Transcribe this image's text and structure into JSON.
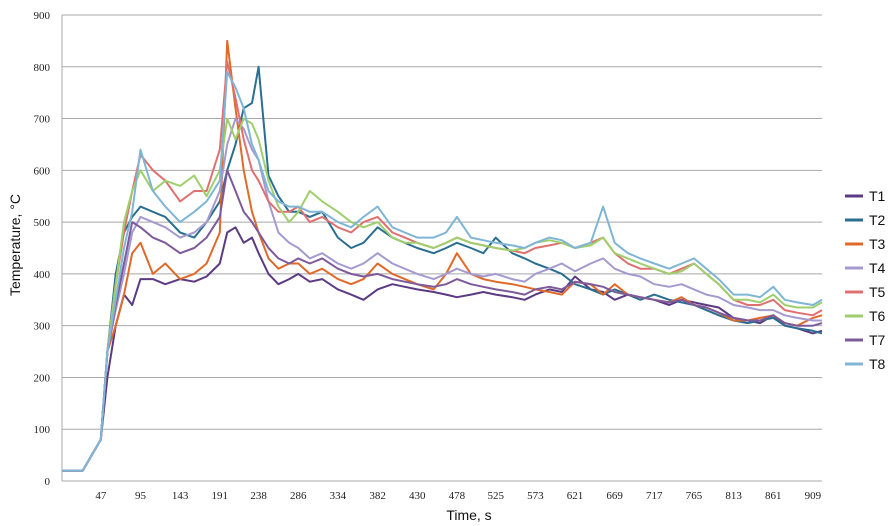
{
  "chart_data": {
    "type": "line",
    "xlabel": "Time, s",
    "ylabel": "Temperature, °C",
    "ylim": [
      0,
      900
    ],
    "xlim": [
      0,
      920
    ],
    "yticks": [
      "0",
      "100",
      "200",
      "300",
      "400",
      "500",
      "600",
      "700",
      "800",
      "900"
    ],
    "xticks": [
      "47",
      "95",
      "143",
      "191",
      "238",
      "286",
      "334",
      "382",
      "430",
      "478",
      "525",
      "573",
      "621",
      "669",
      "717",
      "765",
      "813",
      "861",
      "909"
    ],
    "grid": "horizontal",
    "legend_position": "right",
    "x": [
      0,
      25,
      47,
      55,
      65,
      75,
      85,
      95,
      110,
      125,
      143,
      160,
      175,
      191,
      200,
      210,
      220,
      230,
      238,
      250,
      262,
      275,
      286,
      300,
      315,
      334,
      350,
      365,
      382,
      400,
      415,
      430,
      450,
      465,
      478,
      495,
      510,
      525,
      545,
      560,
      573,
      590,
      605,
      621,
      640,
      655,
      669,
      685,
      700,
      717,
      735,
      750,
      765,
      780,
      795,
      813,
      830,
      845,
      861,
      875,
      890,
      909,
      920
    ],
    "series": [
      {
        "name": "T1",
        "color": "#5b3a83",
        "values": [
          20,
          20,
          80,
          200,
          300,
          360,
          340,
          390,
          390,
          380,
          390,
          385,
          395,
          420,
          480,
          490,
          460,
          470,
          440,
          400,
          380,
          390,
          400,
          385,
          390,
          370,
          360,
          350,
          370,
          380,
          375,
          370,
          365,
          360,
          355,
          360,
          365,
          360,
          355,
          350,
          360,
          370,
          365,
          395,
          370,
          365,
          350,
          360,
          355,
          350,
          340,
          350,
          345,
          340,
          335,
          315,
          310,
          305,
          320,
          300,
          295,
          285,
          290
        ]
      },
      {
        "name": "T2",
        "color": "#2a6f8f",
        "values": [
          20,
          20,
          80,
          250,
          400,
          480,
          510,
          530,
          520,
          510,
          480,
          470,
          500,
          540,
          600,
          650,
          720,
          730,
          800,
          590,
          550,
          520,
          520,
          510,
          520,
          470,
          450,
          460,
          490,
          470,
          460,
          450,
          440,
          450,
          460,
          450,
          440,
          470,
          440,
          430,
          420,
          410,
          400,
          380,
          370,
          360,
          370,
          360,
          350,
          360,
          350,
          345,
          340,
          330,
          320,
          310,
          305,
          310,
          315,
          300,
          295,
          290,
          285
        ]
      },
      {
        "name": "T3",
        "color": "#e06a2a",
        "values": [
          20,
          20,
          80,
          250,
          300,
          360,
          440,
          460,
          400,
          420,
          390,
          400,
          420,
          480,
          850,
          720,
          600,
          520,
          480,
          430,
          410,
          420,
          420,
          400,
          410,
          390,
          380,
          390,
          420,
          400,
          390,
          380,
          370,
          400,
          440,
          400,
          390,
          385,
          380,
          375,
          370,
          365,
          360,
          385,
          380,
          360,
          380,
          360,
          355,
          350,
          345,
          355,
          340,
          335,
          325,
          310,
          310,
          315,
          320,
          305,
          300,
          315,
          320
        ]
      },
      {
        "name": "T4",
        "color": "#a59ad0",
        "values": [
          20,
          20,
          80,
          250,
          330,
          400,
          480,
          510,
          500,
          490,
          470,
          480,
          500,
          560,
          650,
          700,
          680,
          640,
          620,
          540,
          480,
          460,
          450,
          430,
          440,
          420,
          410,
          420,
          440,
          420,
          410,
          400,
          390,
          400,
          410,
          400,
          395,
          400,
          390,
          385,
          400,
          410,
          420,
          405,
          420,
          430,
          410,
          400,
          395,
          380,
          375,
          380,
          370,
          360,
          355,
          340,
          335,
          330,
          330,
          320,
          315,
          310,
          310
        ]
      },
      {
        "name": "T5",
        "color": "#e07070",
        "values": [
          20,
          20,
          80,
          250,
          380,
          480,
          560,
          630,
          600,
          580,
          540,
          560,
          560,
          640,
          810,
          740,
          660,
          600,
          580,
          540,
          520,
          520,
          530,
          500,
          510,
          490,
          480,
          500,
          510,
          480,
          470,
          460,
          450,
          460,
          470,
          460,
          455,
          450,
          445,
          440,
          450,
          455,
          460,
          450,
          460,
          470,
          440,
          420,
          410,
          410,
          400,
          410,
          420,
          400,
          380,
          350,
          340,
          340,
          350,
          330,
          325,
          320,
          330
        ]
      },
      {
        "name": "T6",
        "color": "#9fcf6c",
        "values": [
          20,
          20,
          80,
          250,
          380,
          500,
          560,
          600,
          560,
          580,
          570,
          590,
          550,
          600,
          700,
          660,
          700,
          690,
          660,
          580,
          530,
          500,
          520,
          560,
          540,
          520,
          500,
          490,
          500,
          470,
          460,
          460,
          450,
          460,
          470,
          460,
          455,
          450,
          445,
          450,
          460,
          465,
          460,
          450,
          455,
          470,
          440,
          430,
          420,
          410,
          400,
          405,
          420,
          400,
          380,
          350,
          350,
          345,
          360,
          340,
          335,
          335,
          345
        ]
      },
      {
        "name": "T7",
        "color": "#7e5a9b",
        "values": [
          20,
          20,
          80,
          250,
          340,
          420,
          500,
          490,
          470,
          460,
          440,
          450,
          470,
          510,
          600,
          560,
          520,
          500,
          480,
          450,
          430,
          420,
          430,
          420,
          430,
          410,
          400,
          395,
          400,
          390,
          385,
          380,
          375,
          380,
          390,
          380,
          375,
          370,
          365,
          360,
          370,
          375,
          370,
          385,
          380,
          375,
          365,
          360,
          355,
          350,
          345,
          350,
          340,
          335,
          325,
          315,
          310,
          310,
          320,
          305,
          300,
          300,
          305
        ]
      },
      {
        "name": "T8",
        "color": "#7fb5d5",
        "values": [
          20,
          20,
          80,
          250,
          350,
          450,
          520,
          640,
          560,
          530,
          500,
          520,
          540,
          580,
          790,
          760,
          720,
          650,
          620,
          560,
          540,
          530,
          530,
          520,
          520,
          500,
          490,
          510,
          530,
          490,
          480,
          470,
          470,
          480,
          510,
          470,
          465,
          460,
          455,
          450,
          460,
          470,
          465,
          450,
          460,
          530,
          460,
          440,
          430,
          420,
          410,
          420,
          430,
          410,
          390,
          360,
          360,
          355,
          375,
          350,
          345,
          340,
          350
        ]
      }
    ]
  }
}
